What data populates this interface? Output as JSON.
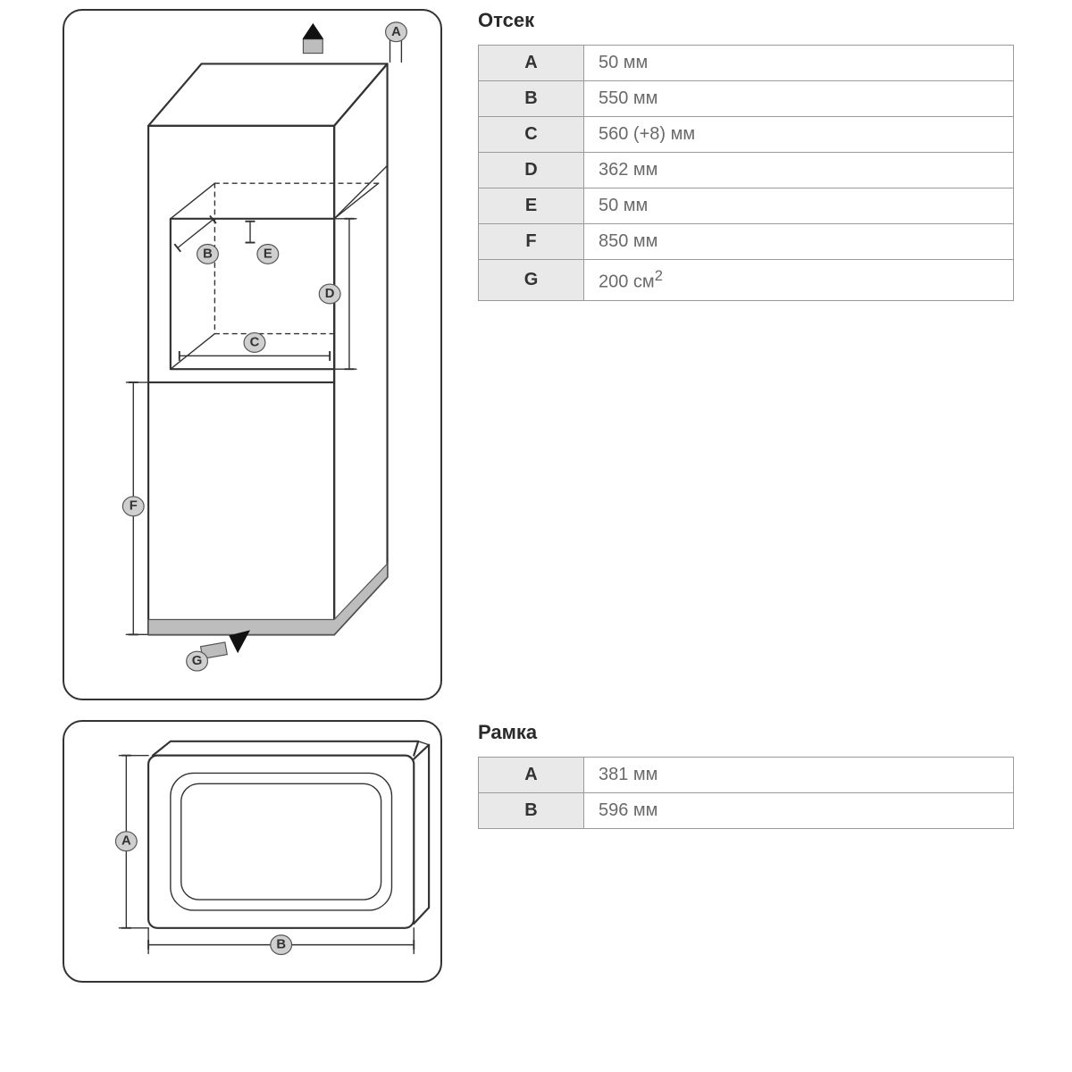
{
  "colors": {
    "border": "#333333",
    "panel_bg": "#ffffff",
    "table_border": "#9a9a9a",
    "table_key_bg": "#e9e9e9",
    "table_key_fg": "#333333",
    "table_val_fg": "#6a6a6a",
    "label_fill": "#cfcfcf",
    "gray_fill": "#bdbdbd",
    "text": "#2a2a2a"
  },
  "sections": {
    "compartment": {
      "title": "Отсек",
      "rows": [
        {
          "key": "A",
          "value": "50 мм"
        },
        {
          "key": "B",
          "value": "550 мм"
        },
        {
          "key": "C",
          "value": "560 (+8) мм"
        },
        {
          "key": "D",
          "value": "362 мм"
        },
        {
          "key": "E",
          "value": "50 мм"
        },
        {
          "key": "F",
          "value": "850 мм"
        },
        {
          "key": "G",
          "value_html": "200 см<sup>2</sup>"
        }
      ],
      "diagram": {
        "labels": [
          "A",
          "B",
          "C",
          "D",
          "E",
          "F",
          "G"
        ]
      }
    },
    "frame": {
      "title": "Рамка",
      "rows": [
        {
          "key": "A",
          "value": "381 мм"
        },
        {
          "key": "B",
          "value": "596 мм"
        }
      ],
      "diagram": {
        "labels": [
          "A",
          "B"
        ]
      }
    }
  }
}
